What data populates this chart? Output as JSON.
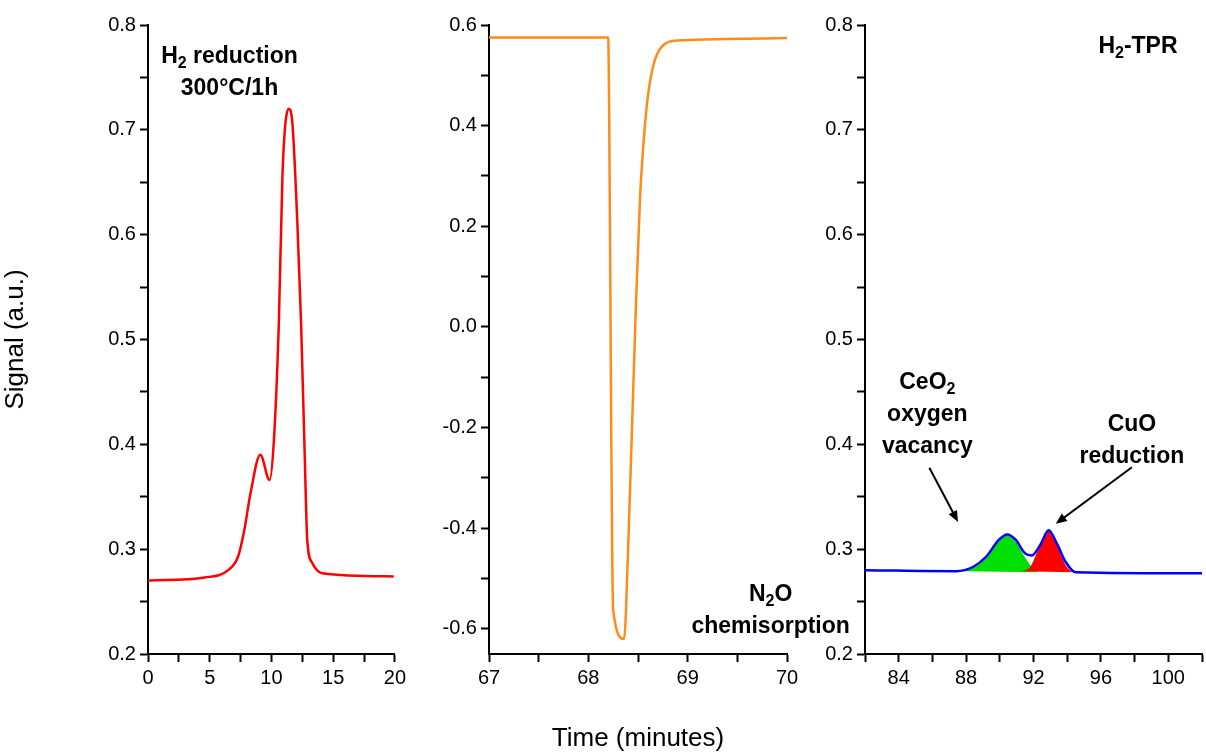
{
  "chart_data": [
    {
      "type": "line",
      "ylabel": "Signal (a.u.)",
      "xlim": [
        0,
        20
      ],
      "ylim": [
        0.2,
        0.8
      ],
      "xticks": [
        0,
        {
          "value": 2.5,
          "label": null
        },
        5,
        {
          "value": 7.5,
          "label": null
        },
        10,
        {
          "value": 12.5,
          "label": null
        },
        15,
        {
          "value": 17.5,
          "label": null
        },
        20
      ],
      "yticks": [
        0.2,
        {
          "value": 0.25,
          "label": null
        },
        0.3,
        {
          "value": 0.35,
          "label": null
        },
        0.4,
        {
          "value": 0.45,
          "label": null
        },
        0.5,
        {
          "value": 0.55,
          "label": null
        },
        0.6,
        {
          "value": 0.65,
          "label": null
        },
        0.7,
        {
          "value": 0.75,
          "label": null
        },
        0.8
      ],
      "annotations": [
        "H$_{2}$ reduction\n300°C/1h"
      ],
      "series": [
        {
          "color": "#ff0000",
          "x": [
            0,
            4.6,
            6.5,
            7.3,
            7.8,
            8.3,
            9.1,
            9.85,
            10.2,
            10.6,
            10.9,
            11.4,
            11.7,
            12.1,
            12.4,
            12.7,
            12.9,
            13.3,
            14.1,
            19.9
          ],
          "values": [
            0.27,
            0.273,
            0.28,
            0.293,
            0.318,
            0.353,
            0.39,
            0.366,
            0.404,
            0.516,
            0.659,
            0.72,
            0.706,
            0.611,
            0.516,
            0.388,
            0.309,
            0.287,
            0.277,
            0.274
          ]
        }
      ]
    },
    {
      "type": "line",
      "xlabel": "Time (minutes)",
      "xlim": [
        67,
        70
      ],
      "ylim": [
        -0.65,
        0.6
      ],
      "xticks": [
        67,
        {
          "value": 67.5,
          "label": null
        },
        68,
        {
          "value": 68.5,
          "label": null
        },
        69,
        {
          "value": 69.5,
          "label": null
        },
        70
      ],
      "yticks": [
        -0.6,
        {
          "value": -0.5,
          "label": null
        },
        -0.4,
        {
          "value": -0.3,
          "label": null
        },
        -0.2,
        {
          "value": -0.1,
          "label": null
        },
        {
          "value": 0,
          "label": "0.0"
        },
        {
          "value": 0.1,
          "label": null
        },
        0.2,
        {
          "value": 0.3,
          "label": null
        },
        0.4,
        {
          "value": 0.5,
          "label": null
        },
        0.6
      ],
      "annotations": [
        "N$_{2}$O\nchemisorption"
      ],
      "series": [
        {
          "color": "#ff8c1a",
          "x": [
            67,
            68.2,
            68.21,
            68.22,
            68.23,
            68.24,
            68.25,
            68.36,
            68.4,
            68.44,
            68.48,
            68.52,
            68.56,
            68.6,
            68.66,
            68.74,
            68.89,
            69.38,
            70
          ],
          "values": [
            0.575,
            0.575,
            0.418,
            0.131,
            -0.198,
            -0.444,
            -0.563,
            -0.62,
            -0.444,
            -0.198,
            0.048,
            0.254,
            0.377,
            0.459,
            0.524,
            0.557,
            0.569,
            0.572,
            0.574
          ]
        }
      ]
    },
    {
      "type": "line",
      "xlim": [
        82,
        102
      ],
      "ylim": [
        0.2,
        0.8
      ],
      "xticks": [
        {
          "value": 82,
          "label": null
        },
        84,
        {
          "value": 86,
          "label": null
        },
        88,
        {
          "value": 90,
          "label": null
        },
        92,
        {
          "value": 94,
          "label": null
        },
        96,
        {
          "value": 98,
          "label": null
        },
        100,
        {
          "value": 102,
          "label": null
        }
      ],
      "yticks": [
        0.2,
        {
          "value": 0.25,
          "label": null
        },
        0.3,
        {
          "value": 0.35,
          "label": null
        },
        0.4,
        {
          "value": 0.45,
          "label": null
        },
        0.5,
        {
          "value": 0.55,
          "label": null
        },
        0.6,
        {
          "value": 0.65,
          "label": null
        },
        0.7,
        {
          "value": 0.75,
          "label": null
        },
        0.8
      ],
      "annotations": [
        "H$_{2}$-TPR",
        "CeO$_{2}$\noxygen\nvacancy",
        "CuO\nreduction"
      ],
      "series": [
        {
          "type": "area",
          "color": "#00e000",
          "x": [
            87.8,
            88.5,
            89.2,
            89.9,
            90.44,
            91,
            91.5,
            92,
            92.3
          ],
          "values": [
            0.279,
            0.284,
            0.293,
            0.307,
            0.313,
            0.306,
            0.292,
            0.281,
            0.278
          ]
        },
        {
          "type": "area",
          "color": "#ff0000",
          "x": [
            91.3,
            91.8,
            92.3,
            92.9,
            93.4,
            93.9,
            94.3
          ],
          "values": [
            0.279,
            0.283,
            0.3,
            0.317,
            0.304,
            0.285,
            0.278
          ]
        },
        {
          "color": "#0000ff",
          "x": [
            82,
            87.4,
            88.4,
            89.2,
            89.95,
            90.44,
            90.94,
            91.5,
            91.9,
            92.4,
            92.9,
            93.4,
            93.9,
            94.5,
            102
          ],
          "values": [
            0.28,
            0.279,
            0.283,
            0.293,
            0.309,
            0.314,
            0.309,
            0.296,
            0.294,
            0.304,
            0.318,
            0.305,
            0.288,
            0.278,
            0.277
          ]
        }
      ]
    }
  ]
}
